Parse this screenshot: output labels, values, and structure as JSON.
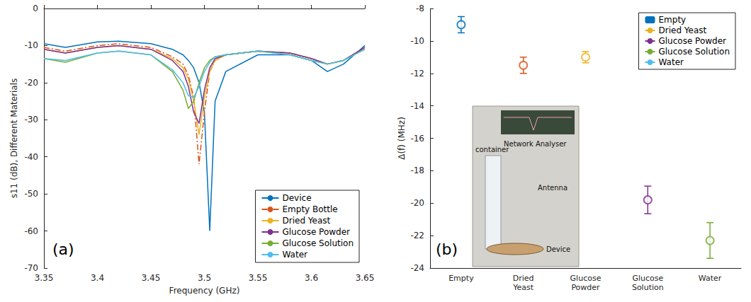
{
  "chart_data": [
    {
      "type": "line",
      "panel_label": "(a)",
      "x_label": "Frequency (GHz)",
      "y_label": "s11 (dB), Different Materials",
      "xlim": [
        3.35,
        3.65
      ],
      "xticks": [
        3.35,
        3.4,
        3.45,
        3.5,
        3.55,
        3.6,
        3.65
      ],
      "ylim": [
        -70,
        0
      ],
      "yticks": [
        -70,
        -60,
        -50,
        -40,
        -30,
        -20,
        -10,
        0
      ],
      "grid": false,
      "legend": "lower right",
      "x": [
        3.35,
        3.37,
        3.4,
        3.42,
        3.45,
        3.47,
        3.48,
        3.485,
        3.49,
        3.495,
        3.5,
        3.505,
        3.51,
        3.52,
        3.55,
        3.58,
        3.6,
        3.615,
        3.63,
        3.65
      ],
      "series": [
        {
          "name": "Device",
          "color": "#0072BD",
          "line_style": "solid",
          "values": [
            -9.5,
            -10.5,
            -9,
            -8.8,
            -9.5,
            -11,
            -12.5,
            -14,
            -16,
            -20,
            -28,
            -60,
            -25,
            -17,
            -12.5,
            -12.5,
            -14,
            -17,
            -15,
            -10
          ]
        },
        {
          "name": "Empty Bottle",
          "color": "#D95319",
          "line_style": "dashdot",
          "values": [
            -10.5,
            -11.5,
            -10,
            -9.5,
            -10.5,
            -13,
            -15,
            -18,
            -24,
            -42,
            -28,
            -17,
            -14,
            -12.5,
            -11.5,
            -12,
            -13.5,
            -15,
            -14,
            -10.5
          ]
        },
        {
          "name": "Dried Yeast",
          "color": "#EDB120",
          "line_style": "solid",
          "values": [
            -11,
            -12,
            -10.5,
            -10,
            -11,
            -13.5,
            -16,
            -19,
            -25,
            -34,
            -24,
            -17,
            -14,
            -12.5,
            -11.5,
            -12,
            -13.5,
            -15,
            -14,
            -10.5
          ]
        },
        {
          "name": "Glucose Powder",
          "color": "#7E2F8E",
          "line_style": "solid",
          "values": [
            -11,
            -12,
            -10.5,
            -10,
            -11,
            -14,
            -17,
            -21,
            -28,
            -31,
            -22,
            -16,
            -13.5,
            -12.5,
            -11.5,
            -12,
            -13.5,
            -15,
            -14,
            -10.5
          ]
        },
        {
          "name": "Glucose Solution",
          "color": "#77AC30",
          "line_style": "solid",
          "values": [
            -13.5,
            -14.5,
            -12,
            -11.5,
            -12.5,
            -17,
            -22,
            -27,
            -25,
            -20,
            -16,
            -14,
            -13,
            -12.5,
            -11.5,
            -12.5,
            -14,
            -15,
            -14,
            -11
          ]
        },
        {
          "name": "Water",
          "color": "#4DBEEE",
          "line_style": "solid",
          "values": [
            -13.5,
            -14,
            -12,
            -11.5,
            -12.5,
            -16.5,
            -20,
            -23.5,
            -24,
            -21,
            -17,
            -14.5,
            -13,
            -12.5,
            -11.5,
            -12.5,
            -14,
            -15,
            -14,
            -11
          ]
        }
      ]
    },
    {
      "type": "scatter",
      "panel_label": "(b)",
      "y_label": "Δ(f) (MHz)",
      "categories": [
        "Empty",
        "Dried Yeast",
        "Glucose Powder",
        "Glucose Solution",
        "Water"
      ],
      "ylim": [
        -24,
        -8
      ],
      "yticks": [
        -24,
        -22,
        -20,
        -18,
        -16,
        -14,
        -12,
        -10,
        -8
      ],
      "grid": false,
      "legend": "upper right",
      "marker": "open circle",
      "series": [
        {
          "name": "Empty",
          "color": "#0072BD",
          "values": [
            -9,
            null,
            null,
            null,
            null
          ],
          "error": [
            0.5,
            null,
            null,
            null,
            null
          ]
        },
        {
          "name": "Dried Yeast",
          "color": "#D95319",
          "values": [
            null,
            -11.5,
            null,
            null,
            null
          ],
          "error": [
            null,
            0.5,
            null,
            null,
            null
          ]
        },
        {
          "name": "Glucose Powder",
          "color": "#EDB120",
          "values": [
            null,
            null,
            -11,
            null,
            null
          ],
          "error": [
            null,
            null,
            0.35,
            null,
            null
          ]
        },
        {
          "name": "Glucose Solution",
          "color": "#7E2F8E",
          "values": [
            null,
            null,
            null,
            -19.8,
            null
          ],
          "error": [
            null,
            null,
            null,
            0.85,
            null
          ]
        },
        {
          "name": "Water",
          "color": "#77AC30",
          "values": [
            null,
            null,
            null,
            null,
            -22.3
          ],
          "error": [
            null,
            null,
            null,
            null,
            1.1
          ]
        }
      ],
      "inset": {
        "labels": [
          "Network Analyser",
          "container",
          "Antenna",
          "Device"
        ]
      }
    }
  ]
}
